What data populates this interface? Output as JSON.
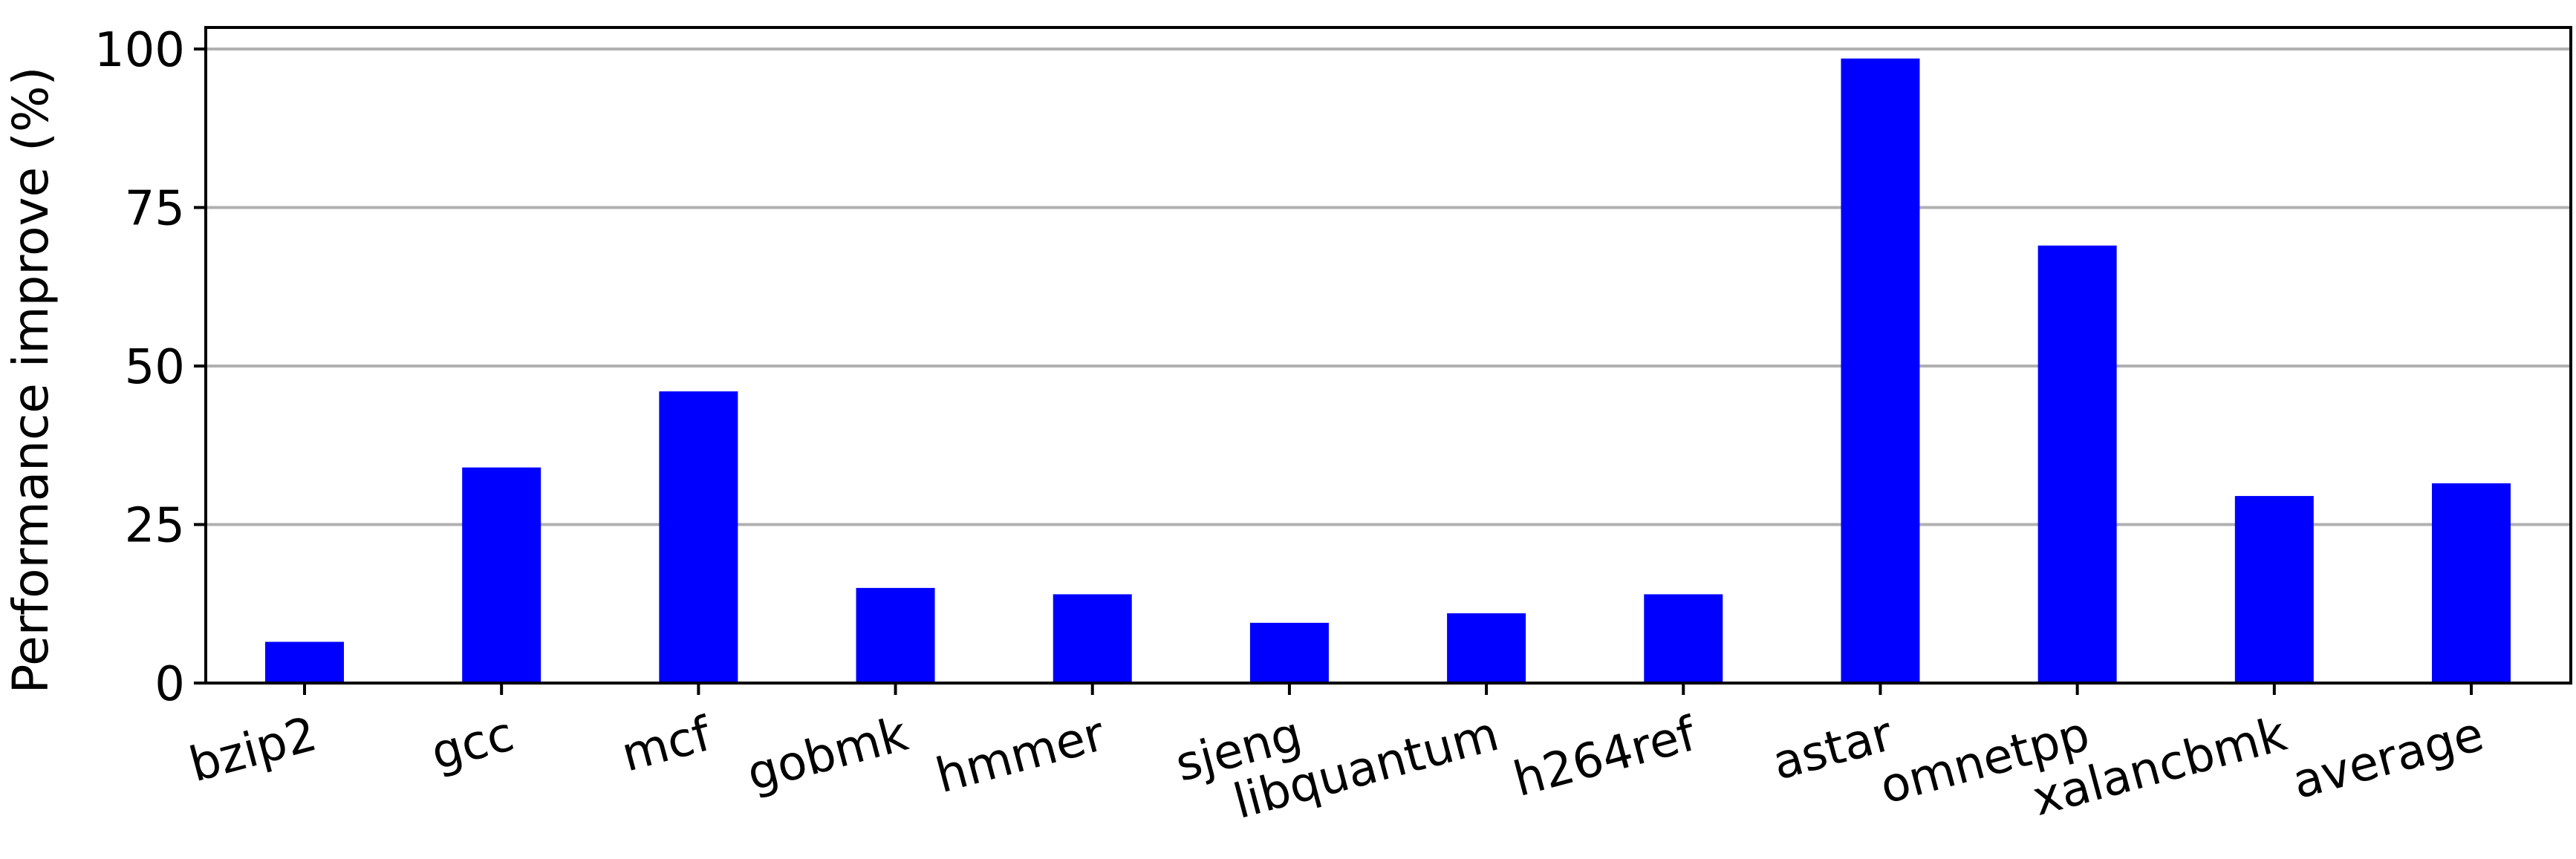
{
  "chart_data": {
    "type": "bar",
    "title": "",
    "xlabel": "",
    "ylabel": "Performance improve (%)",
    "categories": [
      "bzip2",
      "gcc",
      "mcf",
      "gobmk",
      "hmmer",
      "sjeng",
      "libquantum",
      "h264ref",
      "astar",
      "omnetpp",
      "xalancbmk",
      "average"
    ],
    "values": [
      6.5,
      34,
      46,
      15,
      14,
      9.5,
      11,
      14,
      98.5,
      69,
      29.5,
      31.5
    ],
    "ylim": [
      0,
      100
    ],
    "yticks": [
      0,
      25,
      50,
      75,
      100
    ],
    "ytick_labels": [
      "0",
      "25",
      "50",
      "75",
      "100"
    ],
    "grid": "horizontal",
    "bar_color": "#0000ff",
    "grid_color": "#b0b0b0"
  }
}
